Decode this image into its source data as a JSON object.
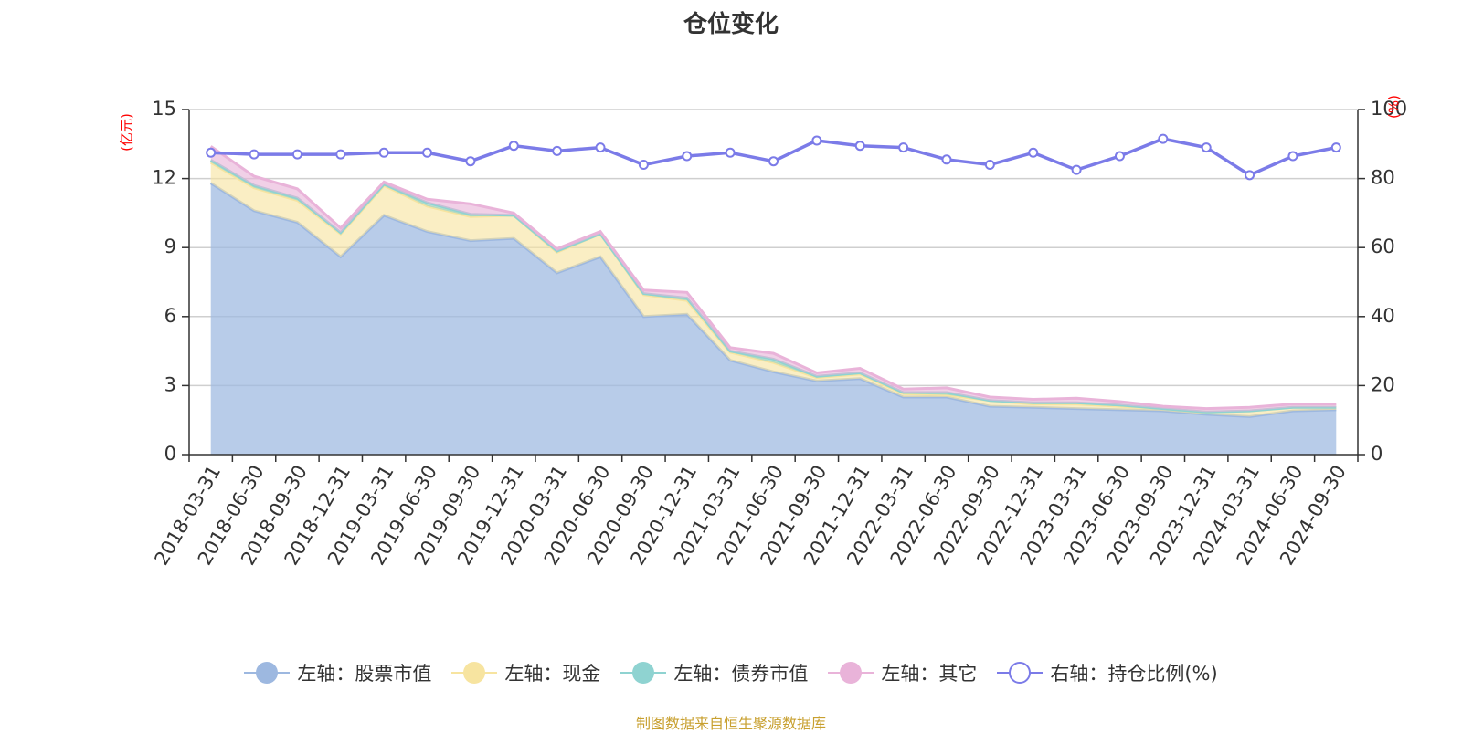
{
  "title": "仓位变化",
  "source": "制图数据来自恒生聚源数据库",
  "legend": [
    {
      "label": "左轴：股票市值",
      "color": "#9db8e0",
      "hollow": false
    },
    {
      "label": "左轴：现金",
      "color": "#f7e4a0",
      "hollow": false
    },
    {
      "label": "左轴：债券市值",
      "color": "#8fd3d1",
      "hollow": false
    },
    {
      "label": "左轴：其它",
      "color": "#e9b3d9",
      "hollow": false
    },
    {
      "label": "右轴：持仓比例(%)",
      "color": "#7b7be8",
      "hollow": true
    }
  ],
  "chart_data": {
    "type": "area+line",
    "title": "仓位变化",
    "left_axis": {
      "unit_label": "(亿元)",
      "range": [
        0,
        15
      ],
      "ticks": [
        "0",
        "3",
        "6",
        "9",
        "12",
        "15"
      ]
    },
    "right_axis": {
      "unit_label": "(%)",
      "range": [
        0,
        100
      ],
      "ticks": [
        "0",
        "20",
        "40",
        "60",
        "80",
        "100"
      ]
    },
    "categories": [
      "2018-03-31",
      "2018-06-30",
      "2018-09-30",
      "2018-12-31",
      "2019-03-31",
      "2019-06-30",
      "2019-09-30",
      "2019-12-31",
      "2020-03-31",
      "2020-06-30",
      "2020-09-30",
      "2020-12-31",
      "2021-03-31",
      "2021-06-30",
      "2021-09-30",
      "2021-12-31",
      "2022-03-31",
      "2022-06-30",
      "2022-09-30",
      "2022-12-31",
      "2023-03-31",
      "2023-06-30",
      "2023-09-30",
      "2023-12-31",
      "2024-03-31",
      "2024-06-30",
      "2024-09-30"
    ],
    "series": [
      {
        "name": "左轴：股票市值",
        "axis": "left",
        "stack": true,
        "color": "#9db8e0",
        "values": [
          11.8,
          10.6,
          10.1,
          8.6,
          10.4,
          9.7,
          9.3,
          9.4,
          7.9,
          8.6,
          6.0,
          6.1,
          4.1,
          3.6,
          3.2,
          3.3,
          2.5,
          2.5,
          2.1,
          2.05,
          2.0,
          1.95,
          1.9,
          1.75,
          1.65,
          1.9,
          1.95
        ]
      },
      {
        "name": "左轴：现金",
        "axis": "left",
        "stack": true,
        "color": "#f7e4a0",
        "values": [
          0.9,
          1.0,
          0.95,
          1.0,
          1.3,
          1.1,
          1.05,
          1.0,
          0.9,
          1.0,
          0.95,
          0.6,
          0.35,
          0.4,
          0.15,
          0.2,
          0.15,
          0.1,
          0.25,
          0.15,
          0.2,
          0.15,
          0.1,
          0.1,
          0.25,
          0.15,
          0.1
        ]
      },
      {
        "name": "左轴：债券市值",
        "axis": "left",
        "stack": true,
        "color": "#8fd3d1",
        "values": [
          0.1,
          0.1,
          0.1,
          0.05,
          0.05,
          0.15,
          0.1,
          0.0,
          0.05,
          0.0,
          0.05,
          0.1,
          0.05,
          0.15,
          0.05,
          0.05,
          0.05,
          0.1,
          0.0,
          0.05,
          0.05,
          0.05,
          0.0,
          0.0,
          0.0,
          0.0,
          0.0
        ]
      },
      {
        "name": "左轴：其它",
        "axis": "left",
        "stack": true,
        "color": "#e9b3d9",
        "values": [
          0.6,
          0.4,
          0.4,
          0.2,
          0.1,
          0.15,
          0.45,
          0.1,
          0.1,
          0.1,
          0.15,
          0.25,
          0.15,
          0.25,
          0.15,
          0.2,
          0.15,
          0.2,
          0.15,
          0.15,
          0.2,
          0.15,
          0.1,
          0.15,
          0.15,
          0.15,
          0.15
        ]
      },
      {
        "name": "右轴：持仓比例(%)",
        "axis": "right",
        "stack": false,
        "color": "#7b7be8",
        "values": [
          87.5,
          87.0,
          87.0,
          87.0,
          87.5,
          87.5,
          85.0,
          89.5,
          88.0,
          89.0,
          84.0,
          86.5,
          87.5,
          85.0,
          91.0,
          89.5,
          89.0,
          85.5,
          84.0,
          87.5,
          82.5,
          86.5,
          91.5,
          89.0,
          81.0,
          86.5,
          89.0
        ]
      }
    ]
  }
}
